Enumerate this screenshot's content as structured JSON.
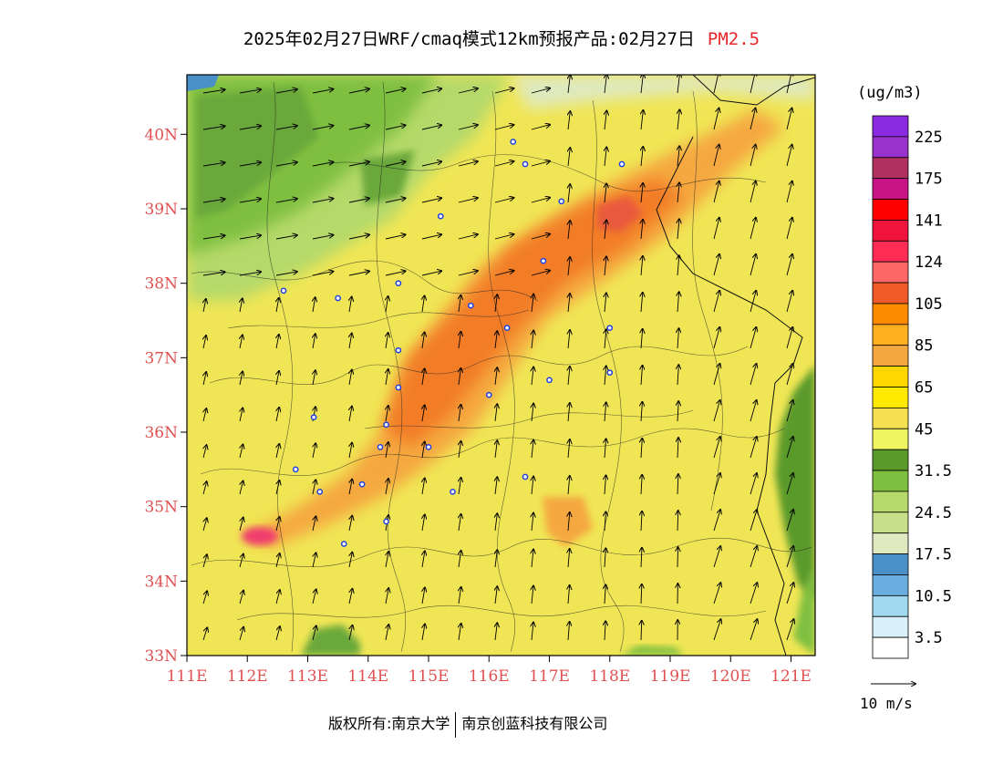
{
  "title": {
    "main": "2025年02月27日WRF/cmaq模式12km预报产品:02月27日",
    "species": "PM2.5"
  },
  "colorbar": {
    "unit": "(ug/m3)",
    "labels": [
      "225",
      "175",
      "141",
      "124",
      "105",
      "85",
      "65",
      "45",
      "31.5",
      "24.5",
      "17.5",
      "10.5",
      "3.5"
    ],
    "colors_top_to_bottom": [
      "#8a2be2",
      "#9932cc",
      "#b03060",
      "#c71585",
      "#ff0000",
      "#f0143c",
      "#ff2d55",
      "#ff6666",
      "#f05a28",
      "#ff8c00",
      "#ffb020",
      "#f5a841",
      "#ffd700",
      "#ffea00",
      "#f5e050",
      "#eef560",
      "#5a9a2a",
      "#7fbf3f",
      "#b5d96a",
      "#c8df8a",
      "#dfe9c0",
      "#4a90c8",
      "#6aaee0",
      "#a0d8f0",
      "#d8f0f8",
      "#ffffff"
    ]
  },
  "axes": {
    "lat_labels": [
      "40N",
      "39N",
      "38N",
      "37N",
      "36N",
      "35N",
      "34N",
      "33N"
    ],
    "lon_labels": [
      "111E",
      "112E",
      "113E",
      "114E",
      "115E",
      "116E",
      "117E",
      "118E",
      "119E",
      "120E",
      "121E"
    ],
    "lat_values": [
      40,
      39,
      38,
      37,
      36,
      35,
      34,
      33
    ],
    "lon_values": [
      111,
      112,
      113,
      114,
      115,
      116,
      117,
      118,
      119,
      120,
      121
    ],
    "lat_range": [
      33,
      40.8
    ],
    "lon_range": [
      111,
      121.4
    ]
  },
  "wind": {
    "reference": "10 m/s"
  },
  "footer": {
    "left": "版权所有:南京大学",
    "right": "南京创蓝科技有限公司"
  },
  "colors": {
    "background_field": "#f0e655",
    "high_band": "#f5a841",
    "peak_band": "#f27d28",
    "hotspot": "#f03c6e",
    "green_low": "#6aa83a",
    "sea_green": "#5a9a2a",
    "water": "#4a90c8",
    "axis_label": "#e05050"
  },
  "cities": [
    {
      "lon": 115.2,
      "lat": 38.9
    },
    {
      "lon": 116.4,
      "lat": 39.9
    },
    {
      "lon": 116.6,
      "lat": 39.6
    },
    {
      "lon": 117.2,
      "lat": 39.1
    },
    {
      "lon": 118.2,
      "lat": 39.6
    },
    {
      "lon": 116.9,
      "lat": 38.3
    },
    {
      "lon": 114.5,
      "lat": 38.0
    },
    {
      "lon": 113.5,
      "lat": 37.8
    },
    {
      "lon": 112.6,
      "lat": 37.9
    },
    {
      "lon": 115.7,
      "lat": 37.7
    },
    {
      "lon": 116.3,
      "lat": 37.4
    },
    {
      "lon": 114.5,
      "lat": 37.1
    },
    {
      "lon": 114.5,
      "lat": 36.6
    },
    {
      "lon": 117.0,
      "lat": 36.7
    },
    {
      "lon": 118.0,
      "lat": 37.4
    },
    {
      "lon": 118.0,
      "lat": 36.8
    },
    {
      "lon": 116.0,
      "lat": 36.5
    },
    {
      "lon": 114.3,
      "lat": 36.1
    },
    {
      "lon": 113.1,
      "lat": 36.2
    },
    {
      "lon": 114.2,
      "lat": 35.8
    },
    {
      "lon": 115.0,
      "lat": 35.8
    },
    {
      "lon": 112.8,
      "lat": 35.5
    },
    {
      "lon": 113.2,
      "lat": 35.2
    },
    {
      "lon": 113.9,
      "lat": 35.3
    },
    {
      "lon": 115.4,
      "lat": 35.2
    },
    {
      "lon": 116.6,
      "lat": 35.4
    },
    {
      "lon": 114.3,
      "lat": 34.8
    },
    {
      "lon": 113.6,
      "lat": 34.5
    }
  ]
}
